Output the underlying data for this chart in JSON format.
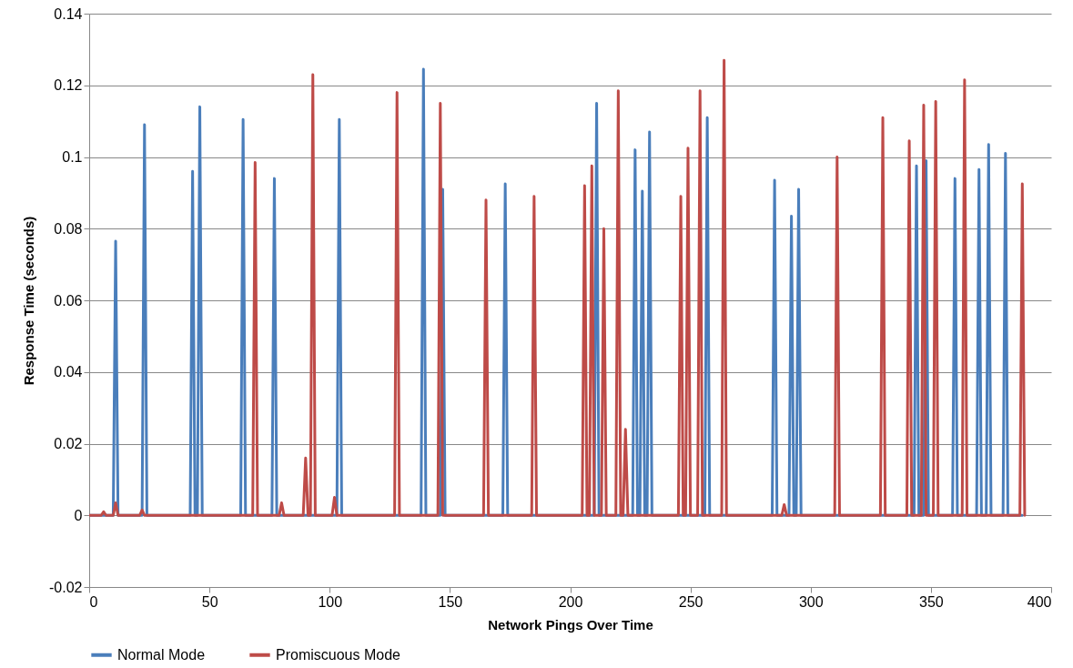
{
  "chart_data": {
    "type": "line",
    "xlabel": "Network Pings Over Time",
    "ylabel": "Response Time  (seconds)",
    "xlim": [
      0,
      400
    ],
    "xticks": [
      0,
      50,
      100,
      150,
      200,
      250,
      300,
      350,
      400
    ],
    "ylim": [
      -0.02,
      0.14
    ],
    "yticks": [
      -0.02,
      0,
      0.02,
      0.04,
      0.06,
      0.08,
      0.1,
      0.12,
      0.14
    ],
    "grid": "y",
    "legend": "bottom",
    "series": [
      {
        "name": "Normal Mode",
        "color": "#4a7ebb",
        "x": [
          0,
          10,
          11,
          12,
          22,
          23,
          24,
          42,
          43,
          44,
          45,
          46,
          47,
          63,
          64,
          65,
          76,
          77,
          78,
          103,
          104,
          105,
          138,
          139,
          140,
          146,
          147,
          148,
          172,
          173,
          174,
          210,
          211,
          212,
          226,
          227,
          228,
          229,
          230,
          231,
          232,
          233,
          234,
          256,
          257,
          258,
          284,
          285,
          286,
          291,
          292,
          293,
          294,
          295,
          296,
          343,
          344,
          345,
          347,
          348,
          349,
          359,
          360,
          361,
          369,
          370,
          371,
          373,
          374,
          375,
          380,
          381,
          382,
          388
        ],
        "values": [
          0,
          0,
          0.0765,
          0,
          0,
          0.109,
          0,
          0,
          0.096,
          0,
          0,
          0.114,
          0,
          0,
          0.1105,
          0,
          0,
          0.094,
          0,
          0,
          0.1105,
          0,
          0,
          0.1245,
          0,
          0,
          0.091,
          0,
          0,
          0.0925,
          0,
          0,
          0.115,
          0,
          0,
          0.102,
          0,
          0,
          0.0905,
          0,
          0,
          0.107,
          0,
          0,
          0.111,
          0,
          0,
          0.0935,
          0,
          0,
          0.0835,
          0,
          0,
          0.091,
          0,
          0,
          0.0975,
          0,
          0,
          0.099,
          0,
          0,
          0.094,
          0,
          0,
          0.0965,
          0,
          0,
          0.1035,
          0,
          0,
          0.101,
          0,
          0
        ]
      },
      {
        "name": "Promiscuous Mode",
        "color": "#be4b48",
        "x": [
          0,
          5,
          6,
          7,
          10,
          11,
          12,
          21,
          22,
          23,
          68,
          69,
          70,
          79,
          80,
          81,
          89,
          90,
          91,
          92,
          93,
          94,
          101,
          102,
          103,
          127,
          128,
          129,
          145,
          146,
          147,
          164,
          165,
          166,
          184,
          185,
          186,
          205,
          206,
          207,
          208,
          209,
          210,
          213,
          214,
          215,
          219,
          220,
          221,
          222,
          223,
          224,
          245,
          246,
          247,
          248,
          249,
          250,
          253,
          254,
          255,
          263,
          264,
          265,
          288,
          289,
          290,
          310,
          311,
          312,
          329,
          330,
          331,
          340,
          341,
          342,
          346,
          347,
          348,
          351,
          352,
          353,
          363,
          364,
          365,
          387,
          388,
          389
        ],
        "values": [
          0,
          0,
          0.001,
          0,
          0,
          0.0035,
          0,
          0,
          0.0015,
          0,
          0,
          0.0985,
          0,
          0,
          0.0035,
          0,
          0,
          0.016,
          0,
          0,
          0.123,
          0,
          0,
          0.005,
          0,
          0,
          0.118,
          0,
          0,
          0.115,
          0,
          0,
          0.088,
          0,
          0,
          0.089,
          0,
          0,
          0.092,
          0,
          0,
          0.0975,
          0,
          0,
          0.08,
          0,
          0,
          0.1185,
          0,
          0,
          0.024,
          0,
          0,
          0.089,
          0,
          0,
          0.1025,
          0,
          0,
          0.1185,
          0,
          0,
          0.127,
          0,
          0,
          0.003,
          0,
          0,
          0.1,
          0,
          0,
          0.111,
          0,
          0,
          0.1045,
          0,
          0,
          0.1145,
          0,
          0,
          0.1155,
          0,
          0,
          0.1215,
          0,
          0,
          0.0925,
          0
        ]
      }
    ]
  }
}
